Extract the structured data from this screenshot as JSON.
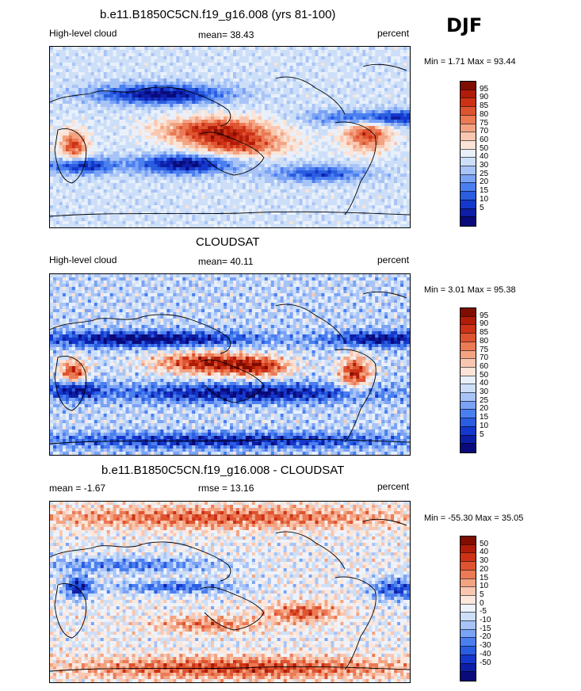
{
  "season": "DJF",
  "palettes": {
    "pct": [
      "#0a0a7a",
      "#0d1fa6",
      "#1538cc",
      "#2a5de0",
      "#4a7ff0",
      "#7ba3f5",
      "#a8c4f7",
      "#cddff8",
      "#e9f0fa",
      "#fbe4d6",
      "#f9c7b0",
      "#f3a382",
      "#eb7a55",
      "#de5430",
      "#cd3217",
      "#b01c08",
      "#7f0d00"
    ],
    "diff": [
      "#0a0a7a",
      "#0d1fa6",
      "#1538cc",
      "#2a5de0",
      "#4a7ff0",
      "#7ba3f5",
      "#a8c4f7",
      "#cddff8",
      "#eef3fb",
      "#fbe7dc",
      "#f9c7b0",
      "#f3a382",
      "#eb7a55",
      "#de5430",
      "#cd3217",
      "#b01c08",
      "#7f0d00"
    ]
  },
  "panels": [
    {
      "title": "b.e11.B1850C5CN.f19_g16.008 (yrs 81-100)",
      "left_label": "High-level cloud",
      "center_label": "mean=  38.43",
      "right_label": "percent",
      "minmax": "Min =   1.71 Max =  93.44",
      "colorbar": {
        "labels": [
          "95",
          "90",
          "85",
          "80",
          "75",
          "70",
          "60",
          "50",
          "40",
          "30",
          "25",
          "20",
          "15",
          "10",
          "5"
        ],
        "palette": "pct"
      },
      "field": "model"
    },
    {
      "title": "CLOUDSAT",
      "left_label": "High-level cloud",
      "center_label": "mean=  40.11",
      "right_label": "percent",
      "minmax": "Min =   3.01 Max =  95.38",
      "colorbar": {
        "labels": [
          "95",
          "90",
          "85",
          "80",
          "75",
          "70",
          "60",
          "50",
          "40",
          "30",
          "25",
          "20",
          "15",
          "10",
          "5"
        ],
        "palette": "pct"
      },
      "field": "obs"
    },
    {
      "title": "b.e11.B1850C5CN.f19_g16.008 - CLOUDSAT",
      "left_label": "mean =  -1.67",
      "center_label": "rmse =  13.16",
      "right_label": "percent",
      "minmax": "Min = -55.30 Max =  35.05",
      "colorbar": {
        "labels": [
          "50",
          "40",
          "30",
          "20",
          "15",
          "10",
          "5",
          "0",
          "-5",
          "-10",
          "-15",
          "-20",
          "-30",
          "-40",
          "-50"
        ],
        "palette": "diff"
      },
      "field": "diff"
    }
  ]
}
